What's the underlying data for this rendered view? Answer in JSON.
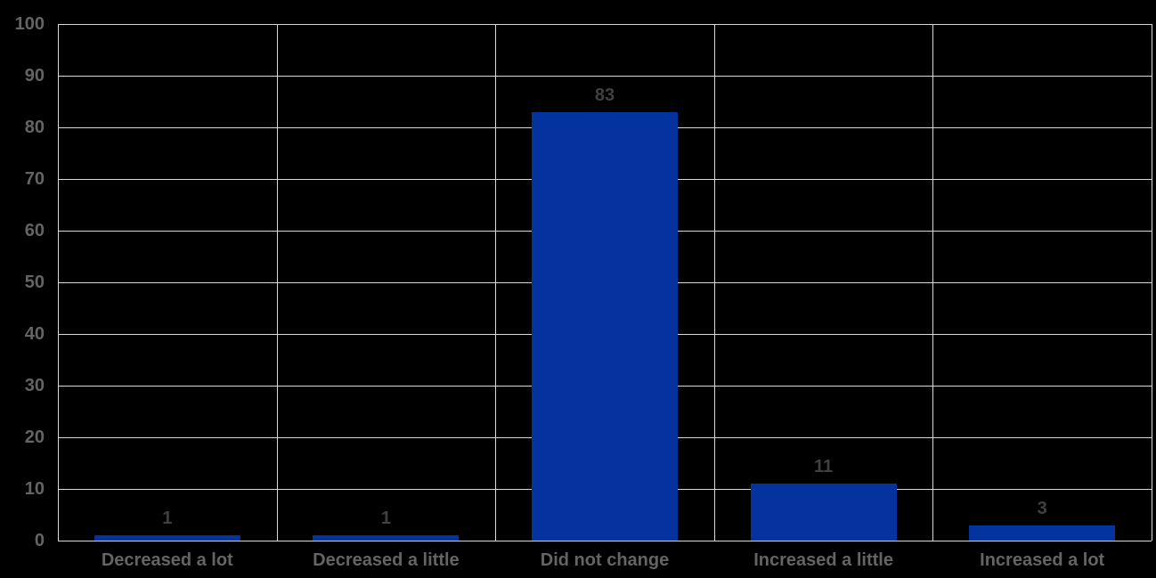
{
  "chart_data": {
    "type": "bar",
    "title": "",
    "xlabel": "",
    "ylabel": "",
    "categories": [
      "Decreased a lot",
      "Decreased a little",
      "Did not change",
      "Increased a little",
      "Increased a lot"
    ],
    "values": [
      1,
      1,
      83,
      11,
      3
    ],
    "data_labels": [
      "1",
      "1",
      "83",
      "11",
      "3"
    ],
    "ylim": [
      0,
      100
    ],
    "ytick_step": 10,
    "ytick_labels": [
      "0",
      "10",
      "20",
      "30",
      "40",
      "50",
      "60",
      "70",
      "80",
      "90",
      "100"
    ],
    "grid": true,
    "legend_position": "none",
    "colors": {
      "background": "#000000",
      "bar_fill": "#0433A0",
      "gridline": "#D9D9D9",
      "axis_label": "#646464",
      "data_label": "#404040"
    }
  }
}
